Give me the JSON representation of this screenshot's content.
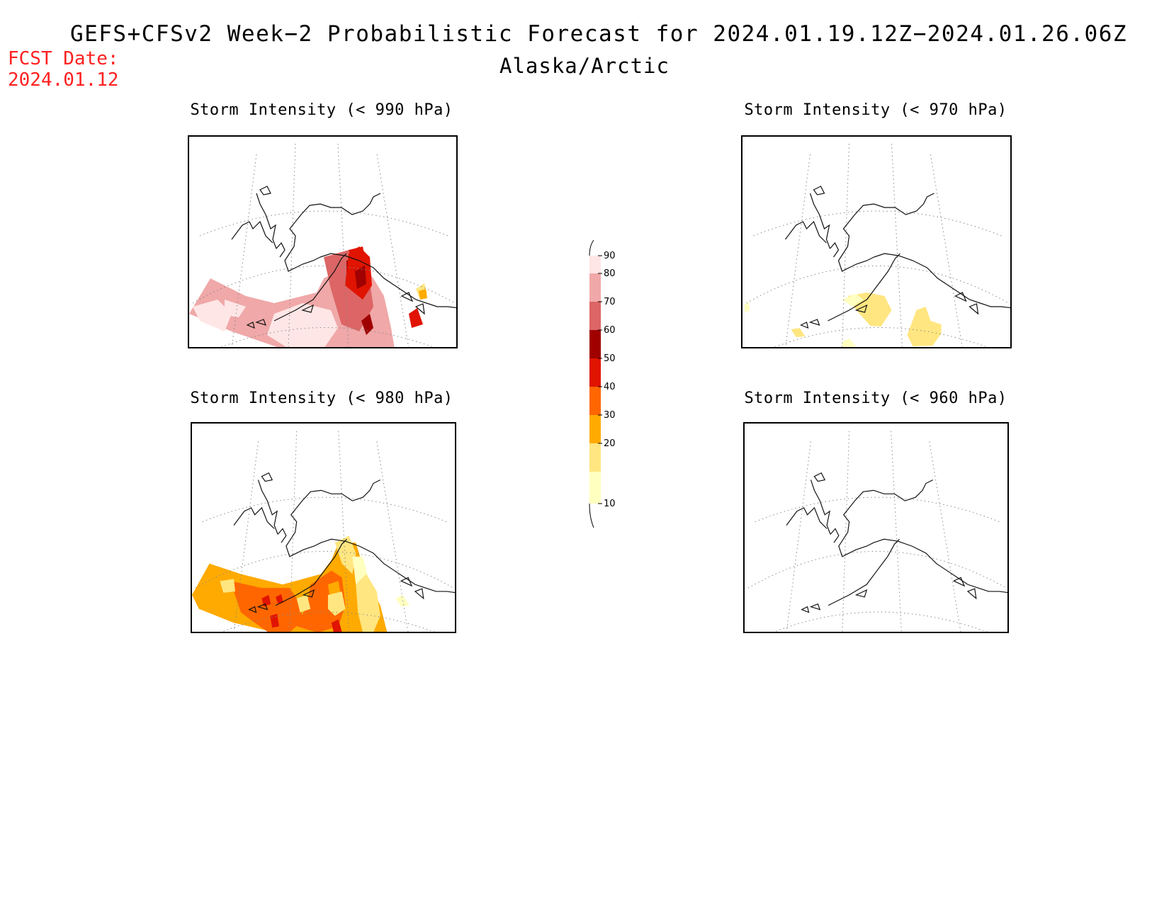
{
  "title": "GEFS+CFSv2 Week−2 Probabilistic Forecast for 2024.01.19.12Z−2024.01.26.06Z",
  "subtitle": "Alaska/Arctic",
  "forecast_date_label": "FCST Date:",
  "forecast_date": "2024.01.12",
  "colors": {
    "fcst_date": "#ff2020",
    "bins": {
      "10": "#ffffc0",
      "20": "#ffe680",
      "30": "#ffaa00",
      "40": "#ff6600",
      "50": "#e01400",
      "60": "#a00000",
      "70": "#dd6565",
      "80": "#f0a8a8",
      "90": "#ffe6e6"
    }
  },
  "colorbar": {
    "ticks": [
      "10",
      "20",
      "30",
      "40",
      "50",
      "60",
      "70",
      "80",
      "90"
    ],
    "unit": ""
  },
  "panels": [
    {
      "id": "990",
      "title": "Storm Intensity (< 990 hPa)"
    },
    {
      "id": "970",
      "title": "Storm Intensity (< 970 hPa)"
    },
    {
      "id": "980",
      "title": "Storm Intensity (< 980 hPa)"
    },
    {
      "id": "960",
      "title": "Storm Intensity (< 960 hPa)"
    }
  ]
}
